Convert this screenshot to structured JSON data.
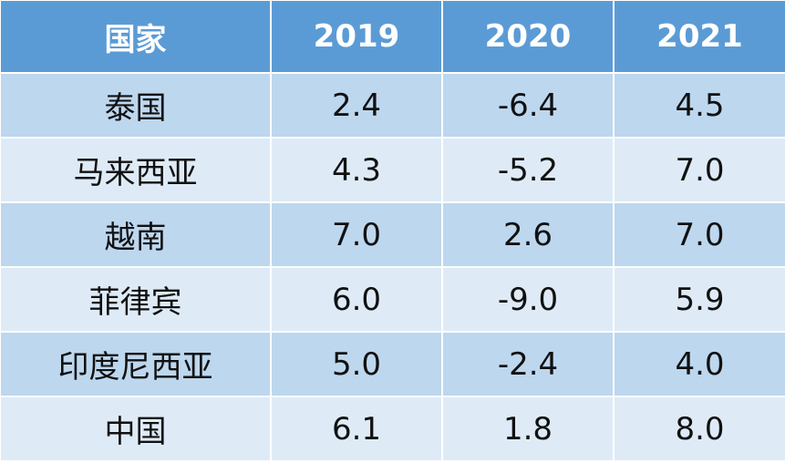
{
  "table": {
    "headers": [
      "国家",
      "2019",
      "2020",
      "2021"
    ],
    "rows": [
      [
        "泰国",
        "2.4",
        "-6.4",
        "4.5"
      ],
      [
        "马来西亚",
        "4.3",
        "-5.2",
        "7.0"
      ],
      [
        "越南",
        "7.0",
        "2.6",
        "7.0"
      ],
      [
        "菲律宾",
        "6.0",
        "-9.0",
        "5.9"
      ],
      [
        "印度尼西亚",
        "5.0",
        "-2.4",
        "4.0"
      ],
      [
        "中国",
        "6.1",
        "1.8",
        "8.0"
      ]
    ]
  },
  "colors": {
    "header_bg": "#5b9bd5",
    "row_odd_bg": "#bdd7ee",
    "row_even_bg": "#deebf7",
    "header_text": "#ffffff",
    "body_text": "#111111"
  }
}
